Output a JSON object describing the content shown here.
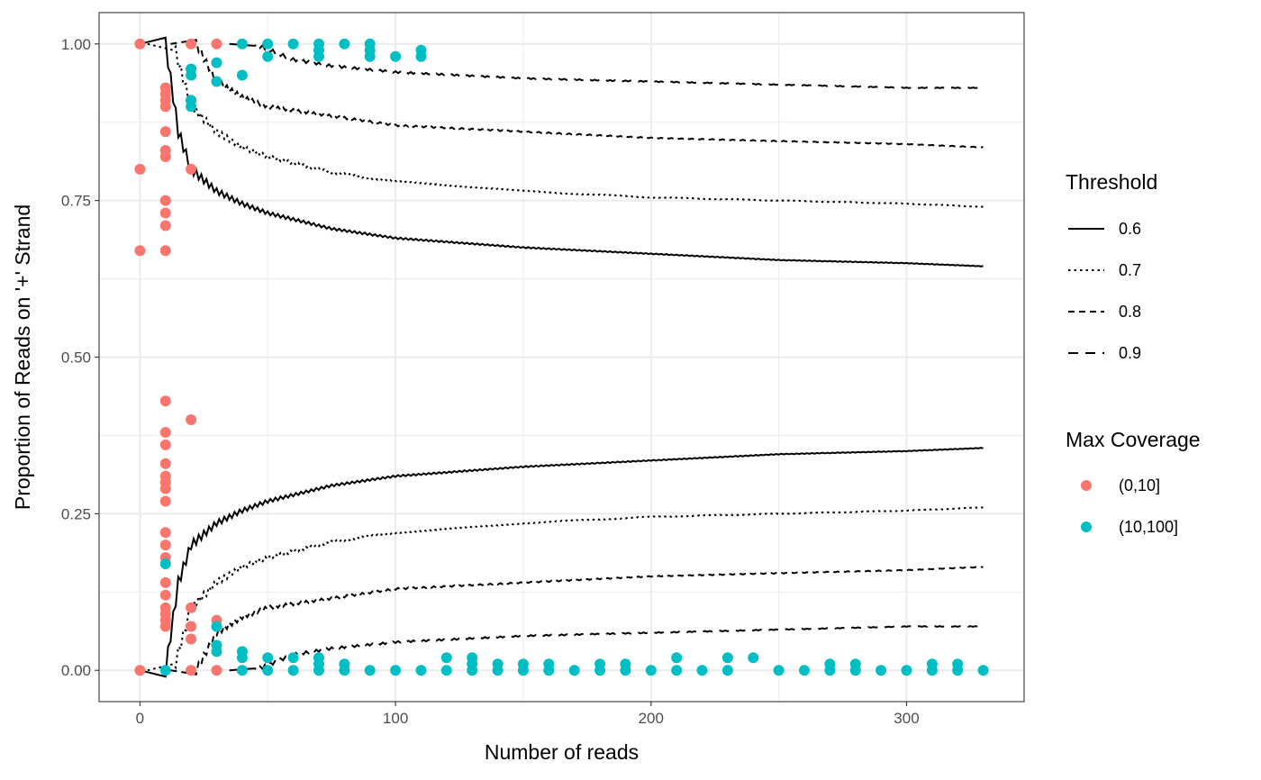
{
  "chart_data": {
    "type": "scatter",
    "title": "",
    "xlabel": "Number of reads",
    "ylabel": "Proportion of Reads on '+' Strand",
    "xlim": [
      -16,
      346
    ],
    "ylim": [
      -0.05,
      1.05
    ],
    "x_ticks": [
      0,
      100,
      200,
      300
    ],
    "x_tick_labels": [
      "0",
      "100",
      "200",
      "300"
    ],
    "x_minor_ticks": [
      50,
      150,
      250
    ],
    "y_ticks": [
      0,
      0.25,
      0.5,
      0.75,
      1
    ],
    "y_tick_labels": [
      "0.00",
      "0.25",
      "0.50",
      "0.75",
      "1.00"
    ],
    "y_minor_ticks": [
      0.125,
      0.375,
      0.625,
      0.875
    ],
    "grid": true,
    "legend_position": "right",
    "threshold_legend": {
      "title": "Threshold",
      "entries": [
        {
          "label": "0.6",
          "dash": "solid"
        },
        {
          "label": "0.7",
          "dash": "dotted"
        },
        {
          "label": "0.8",
          "dash": "dashed"
        },
        {
          "label": "0.9",
          "dash": "longdash"
        }
      ]
    },
    "coverage_legend": {
      "title": "Max Coverage",
      "entries": [
        {
          "label": "(0,10]",
          "color": "#F8766D"
        },
        {
          "label": "(10,100]",
          "color": "#00BFC4"
        }
      ]
    },
    "line_series": [
      {
        "threshold": "0.6",
        "dash": "solid",
        "n_start": 10,
        "upper": [
          [
            10,
            1.0
          ],
          [
            15,
            0.86
          ],
          [
            20,
            0.8
          ],
          [
            30,
            0.765
          ],
          [
            40,
            0.745
          ],
          [
            50,
            0.73
          ],
          [
            75,
            0.705
          ],
          [
            100,
            0.69
          ],
          [
            150,
            0.675
          ],
          [
            200,
            0.665
          ],
          [
            250,
            0.655
          ],
          [
            300,
            0.65
          ],
          [
            330,
            0.645
          ]
        ],
        "lower": [
          [
            10,
            0.0
          ],
          [
            15,
            0.14
          ],
          [
            20,
            0.2
          ],
          [
            30,
            0.235
          ],
          [
            40,
            0.255
          ],
          [
            50,
            0.27
          ],
          [
            75,
            0.295
          ],
          [
            100,
            0.31
          ],
          [
            150,
            0.325
          ],
          [
            200,
            0.335
          ],
          [
            250,
            0.345
          ],
          [
            300,
            0.35
          ],
          [
            330,
            0.355
          ]
        ]
      },
      {
        "threshold": "0.7",
        "dash": "dotted",
        "n_start": 13,
        "upper": [
          [
            13,
            1.0
          ],
          [
            20,
            0.9
          ],
          [
            30,
            0.86
          ],
          [
            40,
            0.835
          ],
          [
            50,
            0.82
          ],
          [
            75,
            0.795
          ],
          [
            100,
            0.78
          ],
          [
            150,
            0.765
          ],
          [
            200,
            0.755
          ],
          [
            250,
            0.75
          ],
          [
            300,
            0.745
          ],
          [
            330,
            0.74
          ]
        ],
        "lower": [
          [
            13,
            0.0
          ],
          [
            20,
            0.1
          ],
          [
            30,
            0.14
          ],
          [
            40,
            0.165
          ],
          [
            50,
            0.18
          ],
          [
            75,
            0.205
          ],
          [
            100,
            0.22
          ],
          [
            150,
            0.235
          ],
          [
            200,
            0.245
          ],
          [
            250,
            0.25
          ],
          [
            300,
            0.255
          ],
          [
            330,
            0.26
          ]
        ]
      },
      {
        "threshold": "0.8",
        "dash": "dashed",
        "n_start": 22,
        "upper": [
          [
            22,
            1.0
          ],
          [
            30,
            0.94
          ],
          [
            40,
            0.915
          ],
          [
            50,
            0.9
          ],
          [
            75,
            0.885
          ],
          [
            100,
            0.87
          ],
          [
            150,
            0.86
          ],
          [
            200,
            0.85
          ],
          [
            250,
            0.845
          ],
          [
            300,
            0.84
          ],
          [
            330,
            0.835
          ]
        ],
        "lower": [
          [
            22,
            0.0
          ],
          [
            30,
            0.06
          ],
          [
            40,
            0.085
          ],
          [
            50,
            0.1
          ],
          [
            75,
            0.115
          ],
          [
            100,
            0.13
          ],
          [
            150,
            0.14
          ],
          [
            200,
            0.15
          ],
          [
            250,
            0.155
          ],
          [
            300,
            0.16
          ],
          [
            330,
            0.165
          ]
        ]
      },
      {
        "threshold": "0.9",
        "dash": "longdash",
        "n_start": 45,
        "upper": [
          [
            45,
            1.0
          ],
          [
            60,
            0.975
          ],
          [
            75,
            0.965
          ],
          [
            100,
            0.955
          ],
          [
            150,
            0.945
          ],
          [
            200,
            0.94
          ],
          [
            250,
            0.935
          ],
          [
            300,
            0.93
          ],
          [
            330,
            0.93
          ]
        ],
        "lower": [
          [
            45,
            0.0
          ],
          [
            60,
            0.025
          ],
          [
            75,
            0.035
          ],
          [
            100,
            0.045
          ],
          [
            150,
            0.055
          ],
          [
            200,
            0.06
          ],
          [
            250,
            0.065
          ],
          [
            300,
            0.07
          ],
          [
            330,
            0.07
          ]
        ]
      }
    ],
    "series": [
      {
        "name": "(0,10]",
        "color": "#F8766D",
        "points": [
          [
            0,
            1.0
          ],
          [
            0,
            0.8
          ],
          [
            0,
            0.67
          ],
          [
            0,
            0.0
          ],
          [
            10,
            0.93
          ],
          [
            10,
            0.92
          ],
          [
            10,
            0.91
          ],
          [
            10,
            0.9
          ],
          [
            10,
            0.86
          ],
          [
            10,
            0.83
          ],
          [
            10,
            0.82
          ],
          [
            10,
            0.75
          ],
          [
            10,
            0.73
          ],
          [
            10,
            0.71
          ],
          [
            10,
            0.67
          ],
          [
            10,
            0.43
          ],
          [
            10,
            0.38
          ],
          [
            10,
            0.36
          ],
          [
            10,
            0.33
          ],
          [
            10,
            0.31
          ],
          [
            10,
            0.3
          ],
          [
            10,
            0.29
          ],
          [
            10,
            0.27
          ],
          [
            10,
            0.22
          ],
          [
            10,
            0.2
          ],
          [
            10,
            0.18
          ],
          [
            10,
            0.14
          ],
          [
            10,
            0.12
          ],
          [
            10,
            0.1
          ],
          [
            10,
            0.09
          ],
          [
            10,
            0.08
          ],
          [
            10,
            0.07
          ],
          [
            20,
            1.0
          ],
          [
            20,
            0.91
          ],
          [
            20,
            0.8
          ],
          [
            20,
            0.4
          ],
          [
            20,
            0.1
          ],
          [
            20,
            0.07
          ],
          [
            20,
            0.05
          ],
          [
            20,
            0.0
          ],
          [
            30,
            1.0
          ],
          [
            30,
            0.08
          ],
          [
            30,
            0.0
          ]
        ]
      },
      {
        "name": "(10,100]",
        "color": "#00BFC4",
        "points": [
          [
            10,
            0.17
          ],
          [
            10,
            0.0
          ],
          [
            20,
            0.96
          ],
          [
            20,
            0.95
          ],
          [
            20,
            0.91
          ],
          [
            20,
            0.9
          ],
          [
            30,
            0.97
          ],
          [
            30,
            0.94
          ],
          [
            30,
            0.07
          ],
          [
            30,
            0.04
          ],
          [
            30,
            0.03
          ],
          [
            40,
            1.0
          ],
          [
            40,
            0.95
          ],
          [
            40,
            0.03
          ],
          [
            40,
            0.02
          ],
          [
            40,
            0.0
          ],
          [
            50,
            1.0
          ],
          [
            50,
            0.98
          ],
          [
            50,
            0.02
          ],
          [
            50,
            0.0
          ],
          [
            60,
            1.0
          ],
          [
            60,
            0.02
          ],
          [
            60,
            0.0
          ],
          [
            70,
            1.0
          ],
          [
            70,
            0.99
          ],
          [
            70,
            0.98
          ],
          [
            70,
            0.02
          ],
          [
            70,
            0.01
          ],
          [
            70,
            0.0
          ],
          [
            80,
            1.0
          ],
          [
            80,
            0.01
          ],
          [
            80,
            0.0
          ],
          [
            90,
            1.0
          ],
          [
            90,
            0.99
          ],
          [
            90,
            0.98
          ],
          [
            90,
            0.0
          ],
          [
            100,
            0.98
          ],
          [
            100,
            0.0
          ],
          [
            110,
            0.99
          ],
          [
            110,
            0.98
          ],
          [
            110,
            0.0
          ],
          [
            120,
            0.02
          ],
          [
            120,
            0.0
          ],
          [
            130,
            0.02
          ],
          [
            130,
            0.01
          ],
          [
            130,
            0.0
          ],
          [
            140,
            0.01
          ],
          [
            140,
            0.0
          ],
          [
            150,
            0.01
          ],
          [
            150,
            0.0
          ],
          [
            160,
            0.01
          ],
          [
            160,
            0.0
          ],
          [
            170,
            0.0
          ],
          [
            180,
            0.01
          ],
          [
            180,
            0.0
          ],
          [
            190,
            0.01
          ],
          [
            190,
            0.0
          ],
          [
            200,
            0.0
          ],
          [
            210,
            0.02
          ],
          [
            210,
            0.0
          ],
          [
            220,
            0.0
          ],
          [
            230,
            0.02
          ],
          [
            230,
            0.0
          ],
          [
            240,
            0.02
          ],
          [
            250,
            0.0
          ],
          [
            260,
            0.0
          ],
          [
            270,
            0.01
          ],
          [
            270,
            0.0
          ],
          [
            280,
            0.01
          ],
          [
            280,
            0.0
          ],
          [
            290,
            0.0
          ],
          [
            300,
            0.0
          ],
          [
            310,
            0.01
          ],
          [
            310,
            0.0
          ],
          [
            320,
            0.01
          ],
          [
            320,
            0.0
          ],
          [
            330,
            0.0
          ]
        ]
      }
    ]
  }
}
